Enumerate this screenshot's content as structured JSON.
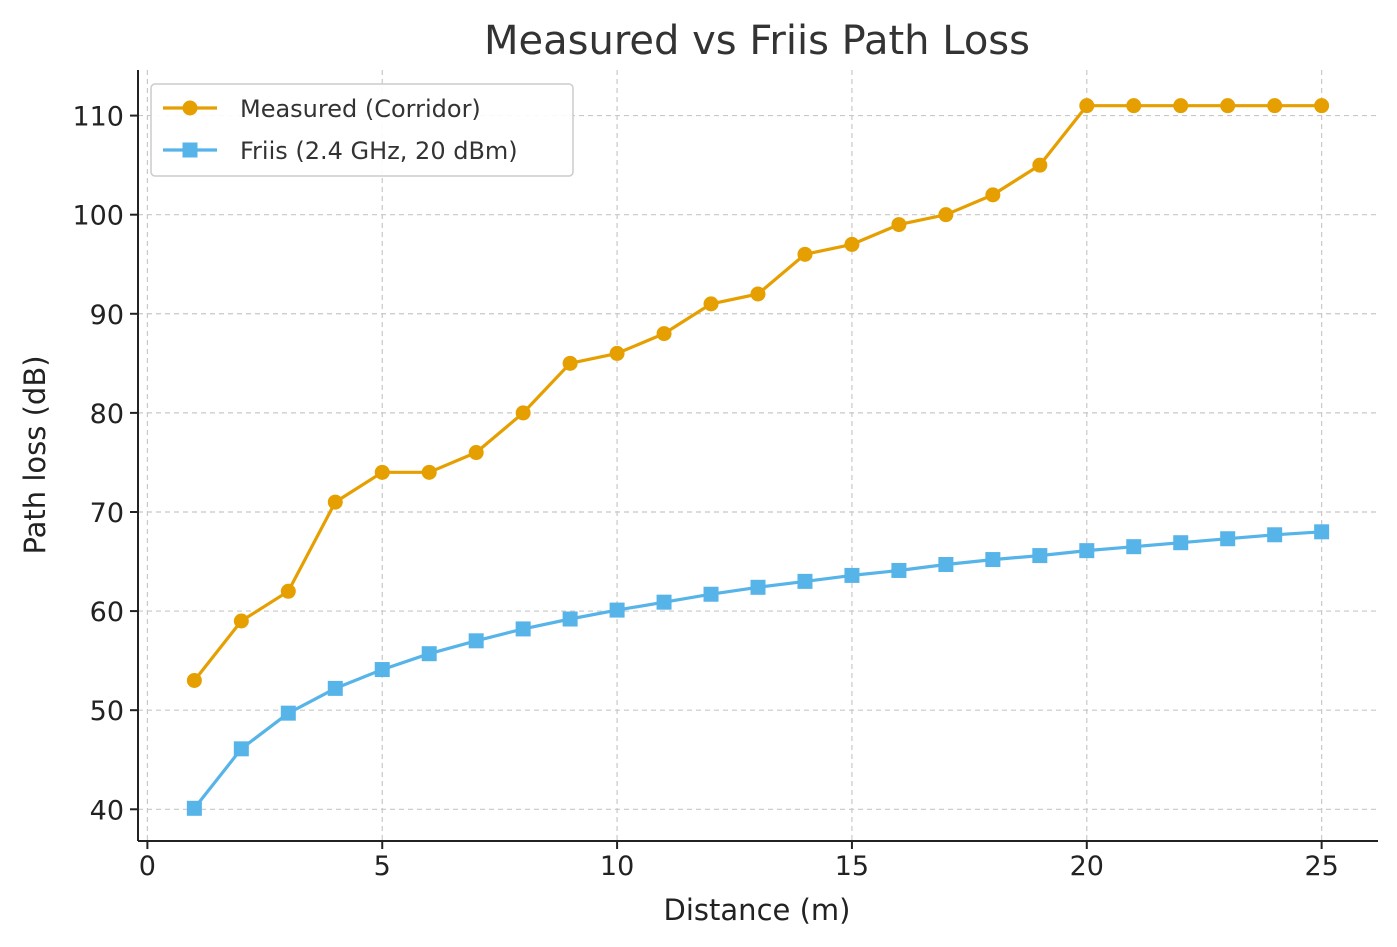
{
  "chart_data": {
    "type": "line",
    "title": "Measured vs Friis Path Loss",
    "xlabel": "Distance (m)",
    "ylabel": "Path loss (dB)",
    "xlim": [
      -0.2,
      26.2
    ],
    "ylim": [
      36.8,
      114.6
    ],
    "xticks": [
      0,
      5,
      10,
      15,
      20,
      25
    ],
    "yticks": [
      40,
      50,
      60,
      70,
      80,
      90,
      100,
      110
    ],
    "grid": true,
    "legend_position": "top-left",
    "x": [
      1,
      2,
      3,
      4,
      5,
      6,
      7,
      8,
      9,
      10,
      11,
      12,
      13,
      14,
      15,
      16,
      17,
      18,
      19,
      20,
      21,
      22,
      23,
      24,
      25
    ],
    "series": [
      {
        "name": "Measured (Corridor)",
        "color": "#E69F00",
        "marker": "circle",
        "values": [
          53,
          59,
          62,
          71,
          74,
          74,
          76,
          80,
          85,
          86,
          88,
          91,
          92,
          96,
          97,
          99,
          100,
          102,
          105,
          111,
          111,
          111,
          111,
          111,
          111
        ]
      },
      {
        "name": "Friis (2.4 GHz, 20 dBm)",
        "color": "#56B4E9",
        "marker": "square",
        "values": [
          40.1,
          46.1,
          49.7,
          52.2,
          54.1,
          55.7,
          57.0,
          58.2,
          59.2,
          60.1,
          60.9,
          61.7,
          62.4,
          63.0,
          63.6,
          64.1,
          64.7,
          65.2,
          65.6,
          66.1,
          66.5,
          66.9,
          67.3,
          67.7,
          68.0
        ]
      }
    ]
  }
}
